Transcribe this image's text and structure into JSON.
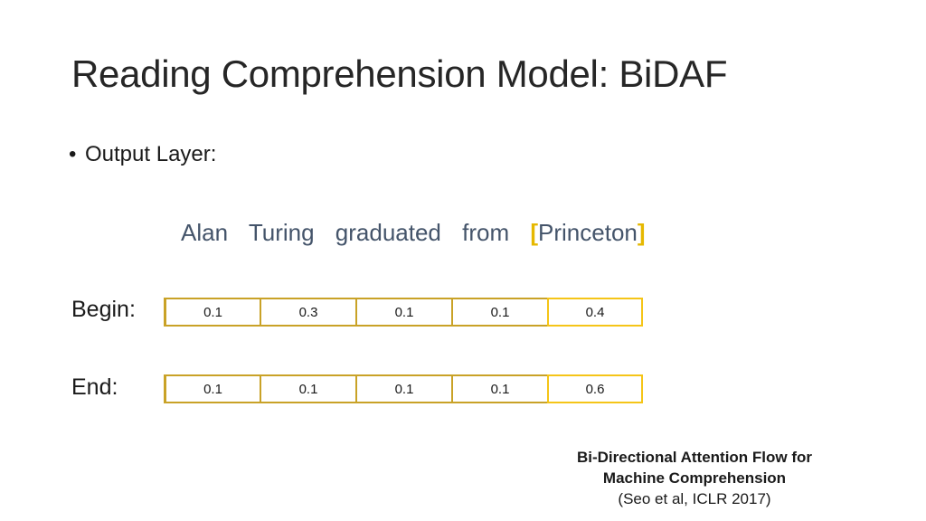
{
  "slide": {
    "title": "Reading Comprehension Model: BiDAF",
    "bullet": "Output Layer:",
    "tokens": [
      "Alan",
      "Turing",
      "graduated",
      "from"
    ],
    "answer_open": "[",
    "answer_token": "Princeton",
    "answer_close": "]",
    "begin": {
      "label": "Begin:",
      "values": [
        "0.1",
        "0.3",
        "0.1",
        "0.1",
        "0.4"
      ]
    },
    "end": {
      "label": "End:",
      "values": [
        "0.1",
        "0.1",
        "0.1",
        "0.1",
        "0.6"
      ]
    },
    "citation": {
      "line1": "Bi-Directional Attention Flow for",
      "line2": "Machine Comprehension",
      "line3": "(Seo et al, ICLR 2017)"
    },
    "colors": {
      "highlight": "#f5c518",
      "border": "#c9a227",
      "token_text": "#44546a"
    }
  }
}
